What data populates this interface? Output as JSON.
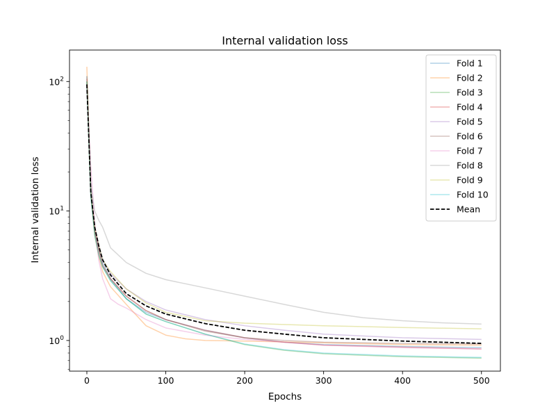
{
  "chart_data": {
    "type": "line",
    "title": "Internal validation loss",
    "xlabel": "Epochs",
    "ylabel": "Internal validation loss",
    "xlim": [
      -22,
      524
    ],
    "ylim": [
      0.58,
      175
    ],
    "yscale": "log",
    "grid": false,
    "legend_position": "top-right",
    "x_ticks": [
      0,
      100,
      200,
      300,
      400,
      500
    ],
    "x_tick_labels": [
      "0",
      "100",
      "200",
      "300",
      "400",
      "500"
    ],
    "y_ticks": [
      1,
      10,
      100
    ],
    "y_tick_labels": [
      "10^0",
      "10^1",
      "10^2"
    ],
    "y_tick_labels_display": [
      {
        "base": "10",
        "exp": "0"
      },
      {
        "base": "10",
        "exp": "1"
      },
      {
        "base": "10",
        "exp": "2"
      }
    ],
    "series": [
      {
        "name": "Fold 1",
        "color": "#1f77b4",
        "opacity": 0.35,
        "points": [
          [
            0,
            110
          ],
          [
            5,
            15
          ],
          [
            10,
            7
          ],
          [
            15,
            5.2
          ],
          [
            20,
            4
          ],
          [
            30,
            3
          ],
          [
            50,
            2.1
          ],
          [
            75,
            1.65
          ],
          [
            100,
            1.45
          ],
          [
            150,
            1.2
          ],
          [
            200,
            1.05
          ],
          [
            250,
            0.97
          ],
          [
            300,
            0.93
          ],
          [
            400,
            0.9
          ],
          [
            500,
            0.88
          ]
        ]
      },
      {
        "name": "Fold 2",
        "color": "#ff7f0e",
        "opacity": 0.35,
        "points": [
          [
            0,
            130
          ],
          [
            5,
            14
          ],
          [
            10,
            6.5
          ],
          [
            15,
            4.5
          ],
          [
            20,
            3.4
          ],
          [
            30,
            2.6
          ],
          [
            50,
            1.9
          ],
          [
            75,
            1.3
          ],
          [
            100,
            1.1
          ],
          [
            125,
            1.03
          ],
          [
            150,
            1.0
          ],
          [
            200,
            0.99
          ],
          [
            300,
            0.96
          ],
          [
            400,
            0.93
          ],
          [
            500,
            0.92
          ]
        ]
      },
      {
        "name": "Fold 3",
        "color": "#2ca02c",
        "opacity": 0.35,
        "points": [
          [
            0,
            100
          ],
          [
            5,
            13
          ],
          [
            10,
            6.5
          ],
          [
            15,
            4.6
          ],
          [
            20,
            3.7
          ],
          [
            30,
            2.9
          ],
          [
            50,
            2.1
          ],
          [
            75,
            1.6
          ],
          [
            100,
            1.4
          ],
          [
            150,
            1.12
          ],
          [
            200,
            0.93
          ],
          [
            250,
            0.84
          ],
          [
            300,
            0.79
          ],
          [
            400,
            0.75
          ],
          [
            500,
            0.73
          ]
        ]
      },
      {
        "name": "Fold 4",
        "color": "#d62728",
        "opacity": 0.35,
        "points": [
          [
            0,
            105
          ],
          [
            5,
            14
          ],
          [
            10,
            7
          ],
          [
            15,
            5
          ],
          [
            20,
            3.8
          ],
          [
            30,
            3
          ],
          [
            50,
            2.2
          ],
          [
            75,
            1.7
          ],
          [
            100,
            1.45
          ],
          [
            150,
            1.2
          ],
          [
            200,
            1.05
          ],
          [
            250,
            0.97
          ],
          [
            300,
            0.92
          ],
          [
            400,
            0.89
          ],
          [
            500,
            0.86
          ]
        ]
      },
      {
        "name": "Fold 5",
        "color": "#9467bd",
        "opacity": 0.35,
        "points": [
          [
            0,
            95
          ],
          [
            5,
            14
          ],
          [
            10,
            7.5
          ],
          [
            15,
            5.5
          ],
          [
            20,
            4.2
          ],
          [
            30,
            3.3
          ],
          [
            50,
            2.5
          ],
          [
            75,
            2.0
          ],
          [
            100,
            1.72
          ],
          [
            150,
            1.45
          ],
          [
            200,
            1.3
          ],
          [
            250,
            1.2
          ],
          [
            300,
            1.12
          ],
          [
            400,
            1.05
          ],
          [
            500,
            1.02
          ]
        ]
      },
      {
        "name": "Fold 6",
        "color": "#8c564b",
        "opacity": 0.35,
        "points": [
          [
            0,
            100
          ],
          [
            5,
            14
          ],
          [
            10,
            7
          ],
          [
            15,
            5
          ],
          [
            20,
            3.8
          ],
          [
            30,
            3
          ],
          [
            50,
            2.2
          ],
          [
            75,
            1.7
          ],
          [
            100,
            1.45
          ],
          [
            150,
            1.18
          ],
          [
            200,
            1.05
          ],
          [
            250,
            1.0
          ],
          [
            300,
            0.97
          ],
          [
            400,
            0.95
          ],
          [
            500,
            0.94
          ]
        ]
      },
      {
        "name": "Fold 7",
        "color": "#e377c2",
        "opacity": 0.35,
        "points": [
          [
            0,
            90
          ],
          [
            5,
            22
          ],
          [
            10,
            8
          ],
          [
            15,
            4.2
          ],
          [
            20,
            3.0
          ],
          [
            30,
            2.1
          ],
          [
            40,
            1.9
          ],
          [
            50,
            1.78
          ],
          [
            75,
            1.45
          ],
          [
            100,
            1.25
          ],
          [
            150,
            1.1
          ],
          [
            200,
            1.02
          ],
          [
            250,
            0.97
          ],
          [
            300,
            0.92
          ],
          [
            400,
            0.88
          ],
          [
            500,
            0.86
          ]
        ]
      },
      {
        "name": "Fold 8",
        "color": "#7f7f7f",
        "opacity": 0.3,
        "points": [
          [
            0,
            110
          ],
          [
            5,
            16
          ],
          [
            10,
            10
          ],
          [
            15,
            8.5
          ],
          [
            20,
            7.5
          ],
          [
            30,
            5.2
          ],
          [
            50,
            4.0
          ],
          [
            75,
            3.3
          ],
          [
            100,
            2.95
          ],
          [
            150,
            2.55
          ],
          [
            200,
            2.2
          ],
          [
            250,
            1.9
          ],
          [
            300,
            1.65
          ],
          [
            350,
            1.5
          ],
          [
            400,
            1.42
          ],
          [
            450,
            1.37
          ],
          [
            500,
            1.34
          ]
        ]
      },
      {
        "name": "Fold 9",
        "color": "#bcbd22",
        "opacity": 0.35,
        "points": [
          [
            0,
            100
          ],
          [
            5,
            14
          ],
          [
            10,
            7.5
          ],
          [
            15,
            5.5
          ],
          [
            20,
            4.2
          ],
          [
            30,
            3.4
          ],
          [
            50,
            2.5
          ],
          [
            75,
            1.95
          ],
          [
            100,
            1.65
          ],
          [
            150,
            1.42
          ],
          [
            200,
            1.36
          ],
          [
            300,
            1.3
          ],
          [
            400,
            1.26
          ],
          [
            500,
            1.23
          ]
        ]
      },
      {
        "name": "Fold 10",
        "color": "#17becf",
        "opacity": 0.35,
        "points": [
          [
            0,
            100
          ],
          [
            5,
            13
          ],
          [
            10,
            6.5
          ],
          [
            15,
            4.6
          ],
          [
            20,
            3.7
          ],
          [
            30,
            2.9
          ],
          [
            50,
            2.1
          ],
          [
            75,
            1.6
          ],
          [
            100,
            1.4
          ],
          [
            150,
            1.12
          ],
          [
            200,
            0.94
          ],
          [
            250,
            0.85
          ],
          [
            300,
            0.8
          ],
          [
            400,
            0.76
          ],
          [
            500,
            0.74
          ]
        ]
      },
      {
        "name": "Mean",
        "color": "#000000",
        "opacity": 1,
        "dashed": true,
        "points": [
          [
            0,
            95
          ],
          [
            5,
            14
          ],
          [
            10,
            7.5
          ],
          [
            15,
            5.4
          ],
          [
            20,
            4.2
          ],
          [
            30,
            3.2
          ],
          [
            50,
            2.3
          ],
          [
            75,
            1.85
          ],
          [
            100,
            1.6
          ],
          [
            150,
            1.35
          ],
          [
            200,
            1.2
          ],
          [
            250,
            1.12
          ],
          [
            300,
            1.05
          ],
          [
            400,
            0.99
          ],
          [
            500,
            0.95
          ]
        ]
      }
    ]
  }
}
